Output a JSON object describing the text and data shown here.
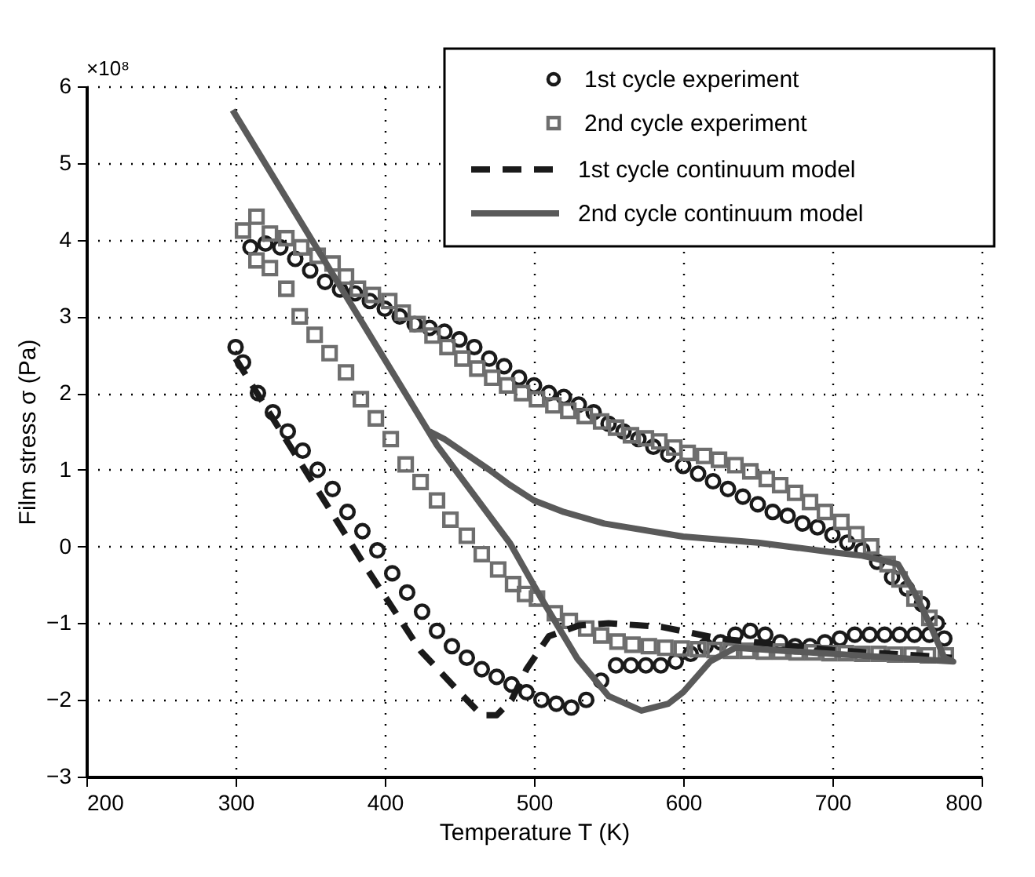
{
  "chart_data": {
    "type": "scatter",
    "xlabel": "Temperature T (K)",
    "ylabel": "Film stress σ (Pa)",
    "annotations": [
      "×10⁸"
    ],
    "xlim": [
      200,
      800
    ],
    "xticks": [
      200,
      300,
      400,
      500,
      600,
      700,
      800
    ],
    "ylim": [
      -3,
      6
    ],
    "yticks": [
      -3,
      -2,
      -1,
      0,
      1,
      2,
      3,
      4,
      5,
      6
    ],
    "grid": true,
    "legend": "top right",
    "series": [
      {
        "name": "1st cycle experiment",
        "marker": "circle",
        "color": "#1a1a1a",
        "x": [
          300,
          305,
          315,
          325,
          335,
          345,
          355,
          365,
          375,
          385,
          395,
          405,
          415,
          425,
          435,
          445,
          455,
          465,
          475,
          485,
          495,
          505,
          515,
          525,
          535,
          545,
          555,
          565,
          575,
          585,
          595,
          605,
          615,
          625,
          635,
          645,
          655,
          665,
          675,
          685,
          695,
          705,
          715,
          725,
          735,
          745,
          755,
          765,
          775,
          770,
          760,
          750,
          740,
          730,
          720,
          710,
          700,
          690,
          680,
          670,
          660,
          650,
          640,
          630,
          620,
          610,
          600,
          590,
          580,
          570,
          560,
          550,
          540,
          530,
          520,
          510,
          500,
          490,
          480,
          470,
          460,
          450,
          440,
          430,
          420,
          410,
          400,
          390,
          380,
          370,
          360,
          350,
          340,
          330,
          320,
          310
        ],
        "values": [
          2.6,
          2.4,
          2.0,
          1.75,
          1.5,
          1.25,
          1.0,
          0.75,
          0.45,
          0.2,
          -0.05,
          -0.35,
          -0.6,
          -0.85,
          -1.1,
          -1.3,
          -1.45,
          -1.6,
          -1.7,
          -1.8,
          -1.9,
          -2.0,
          -2.05,
          -2.1,
          -2.0,
          -1.75,
          -1.55,
          -1.55,
          -1.55,
          -1.55,
          -1.5,
          -1.4,
          -1.3,
          -1.25,
          -1.15,
          -1.1,
          -1.15,
          -1.25,
          -1.3,
          -1.3,
          -1.25,
          -1.2,
          -1.15,
          -1.15,
          -1.15,
          -1.15,
          -1.15,
          -1.15,
          -1.2,
          -1.0,
          -0.75,
          -0.55,
          -0.4,
          -0.2,
          -0.05,
          0.05,
          0.15,
          0.25,
          0.3,
          0.4,
          0.45,
          0.55,
          0.65,
          0.75,
          0.85,
          0.95,
          1.05,
          1.2,
          1.3,
          1.4,
          1.5,
          1.6,
          1.75,
          1.85,
          1.95,
          2.0,
          2.1,
          2.2,
          2.35,
          2.45,
          2.6,
          2.7,
          2.8,
          2.85,
          2.9,
          3.0,
          3.1,
          3.2,
          3.3,
          3.35,
          3.45,
          3.6,
          3.75,
          3.9,
          3.95,
          3.9
        ]
      },
      {
        "name": "2nd cycle experiment",
        "marker": "square",
        "color": "#6e6e6e",
        "x": [
          305,
          314,
          323,
          334,
          343,
          353,
          363,
          374,
          384,
          394,
          404,
          414,
          424,
          435,
          444,
          455,
          465,
          476,
          486,
          494,
          502,
          514,
          524,
          535,
          545,
          556,
          566,
          577,
          588,
          599,
          610,
          621,
          632,
          643,
          654,
          665,
          676,
          687,
          698,
          709,
          720,
          731,
          742,
          753,
          764,
          776,
          765,
          755,
          745,
          737,
          726,
          716,
          706,
          695,
          685,
          675,
          665,
          656,
          645,
          635,
          624,
          614,
          603,
          594,
          584,
          575,
          565,
          555,
          545,
          534,
          523,
          513,
          502,
          492,
          482,
          472,
          462,
          452,
          442,
          432,
          422,
          412,
          403,
          392,
          382,
          374,
          365,
          355,
          344,
          334,
          323,
          314
        ],
        "values": [
          4.12,
          3.73,
          3.63,
          3.36,
          3.0,
          2.76,
          2.52,
          2.27,
          1.92,
          1.67,
          1.4,
          1.07,
          0.84,
          0.6,
          0.35,
          0.14,
          -0.1,
          -0.3,
          -0.49,
          -0.62,
          -0.68,
          -0.87,
          -0.97,
          -1.07,
          -1.16,
          -1.24,
          -1.28,
          -1.3,
          -1.32,
          -1.33,
          -1.34,
          -1.35,
          -1.36,
          -1.36,
          -1.37,
          -1.37,
          -1.38,
          -1.38,
          -1.39,
          -1.39,
          -1.4,
          -1.4,
          -1.41,
          -1.41,
          -1.42,
          -1.42,
          -0.93,
          -0.68,
          -0.43,
          -0.23,
          0.0,
          0.16,
          0.32,
          0.45,
          0.58,
          0.7,
          0.8,
          0.88,
          0.98,
          1.06,
          1.13,
          1.18,
          1.22,
          1.29,
          1.37,
          1.41,
          1.45,
          1.55,
          1.63,
          1.7,
          1.77,
          1.84,
          1.92,
          2.0,
          2.1,
          2.2,
          2.32,
          2.45,
          2.6,
          2.75,
          2.9,
          3.05,
          3.2,
          3.28,
          3.36,
          3.52,
          3.69,
          3.79,
          3.9,
          4.02,
          4.08,
          4.3
        ]
      },
      {
        "name": "1st cycle continuum model",
        "type": "line",
        "line_style": "dashed",
        "color": "#1a1a1a",
        "x": [
          300,
          340,
          386,
          424,
          450,
          465,
          475,
          485,
          495,
          510,
          530,
          550,
          586,
          624,
          700,
          780
        ],
        "values": [
          2.45,
          1.2,
          -0.23,
          -1.36,
          -1.9,
          -2.2,
          -2.2,
          -2.0,
          -1.6,
          -1.17,
          -1.03,
          -1.0,
          -1.05,
          -1.2,
          -1.35,
          -1.45
        ]
      },
      {
        "name": "2nd cycle continuum model",
        "type": "line",
        "line_style": "solid",
        "color": "#5a5a5a",
        "x": [
          298,
          435,
          484,
          505,
          529,
          550,
          572,
          590,
          600,
          618,
          635,
          700,
          781,
          775,
          765,
          755,
          744,
          720,
          702,
          650,
          600,
          547,
          520,
          500,
          484,
          470,
          455,
          440,
          430
        ],
        "values": [
          5.69,
          1.32,
          0.04,
          -0.68,
          -1.46,
          -1.95,
          -2.14,
          -2.05,
          -1.9,
          -1.5,
          -1.32,
          -1.4,
          -1.5,
          -1.45,
          -1.0,
          -0.6,
          -0.23,
          -0.12,
          -0.08,
          0.05,
          0.13,
          0.3,
          0.45,
          0.6,
          0.8,
          1.0,
          1.2,
          1.4,
          1.5
        ]
      }
    ]
  }
}
